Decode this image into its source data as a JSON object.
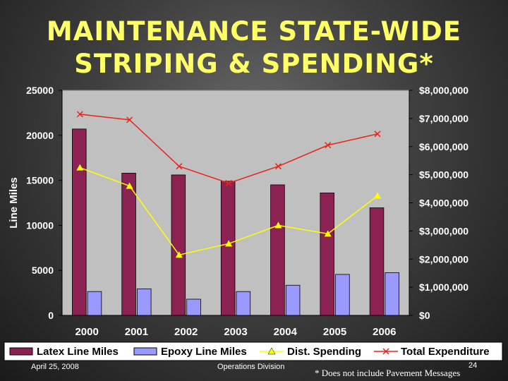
{
  "slide": {
    "title_line1": "MAINTENANCE STATE-WIDE",
    "title_line2": "STRIPING & SPENDING*",
    "footer_date": "April 25, 2008",
    "footer_division": "Operations Division",
    "page_number": "24",
    "footnote": "* Does not include Pavement Messages"
  },
  "colors": {
    "latex": "#8b2252",
    "epoxy": "#9999ff",
    "spending": "#ffff00",
    "total": "#e8251a",
    "plot_bg": "#c0c0c0",
    "title": "#ffff66"
  },
  "chart_data": {
    "type": "bar",
    "categories": [
      "2000",
      "2001",
      "2002",
      "2003",
      "2004",
      "2005",
      "2006"
    ],
    "series": [
      {
        "name": "Latex Line Miles",
        "type": "bar",
        "axis": "left",
        "values": [
          20700,
          15800,
          15600,
          14900,
          14500,
          13600,
          11950
        ]
      },
      {
        "name": "Epoxy Line Miles",
        "type": "bar",
        "axis": "left",
        "values": [
          2650,
          2950,
          1800,
          2650,
          3350,
          4550,
          4750
        ]
      },
      {
        "name": "Dist. Spending",
        "type": "line",
        "axis": "right",
        "marker": "triangle",
        "values": [
          5250000,
          4600000,
          2150000,
          2550000,
          3200000,
          2900000,
          4250000
        ]
      },
      {
        "name": "Total Expenditure",
        "type": "line",
        "axis": "right",
        "marker": "x",
        "values": [
          7150000,
          6950000,
          5300000,
          4700000,
          5300000,
          6050000,
          6450000
        ]
      }
    ],
    "ylabel": "Line Miles",
    "ylim": [
      0,
      25000
    ],
    "y_ticks": [
      "25000",
      "20000",
      "15000",
      "10000",
      "5000",
      "0"
    ],
    "y2lim": [
      0,
      8000000
    ],
    "y2_ticks": [
      "$8,000,000",
      "$7,000,000",
      "$6,000,000",
      "$5,000,000",
      "$4,000,000",
      "$3,000,000",
      "$2,000,000",
      "$1,000,000",
      "$0"
    ],
    "legend_position": "bottom",
    "grid": false
  }
}
